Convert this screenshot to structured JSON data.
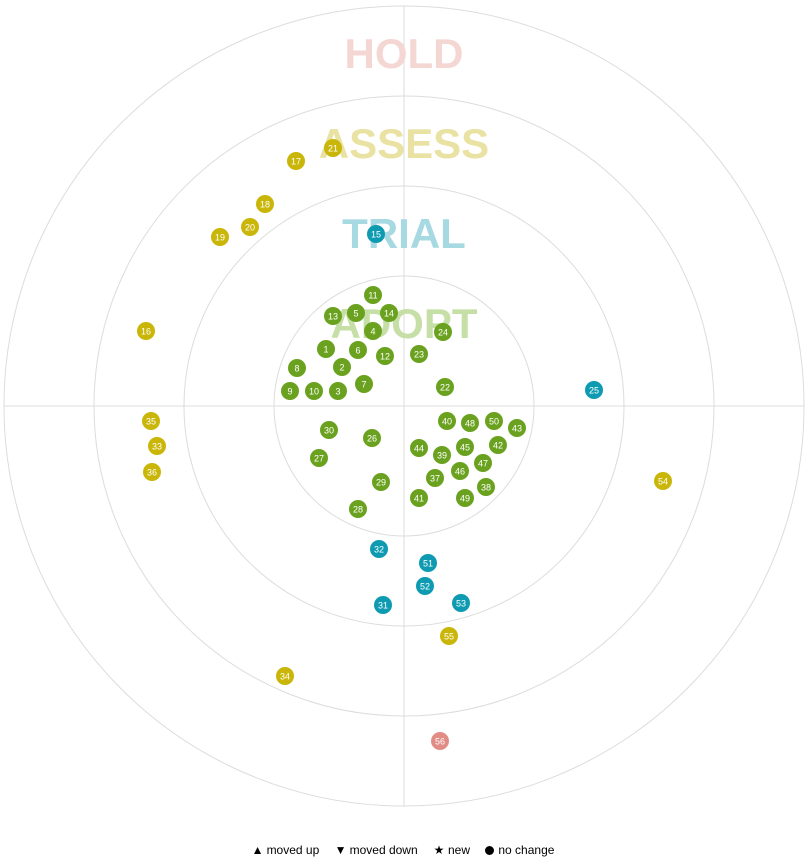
{
  "rings": [
    {
      "name": "ADOPT",
      "color": "#6aa21f",
      "label_color": "#c5dfa6"
    },
    {
      "name": "TRIAL",
      "color": "#0e9bb1",
      "label_color": "#a7d9e2"
    },
    {
      "name": "ASSESS",
      "color": "#c9b609",
      "label_color": "#e9e2a2"
    },
    {
      "name": "HOLD",
      "color": "#e28c86",
      "label_color": "#f4d6d3"
    }
  ],
  "blips": [
    {
      "id": "1",
      "ring": "ADOPT"
    },
    {
      "id": "2",
      "ring": "ADOPT"
    },
    {
      "id": "3",
      "ring": "ADOPT"
    },
    {
      "id": "4",
      "ring": "ADOPT"
    },
    {
      "id": "5",
      "ring": "ADOPT"
    },
    {
      "id": "6",
      "ring": "ADOPT"
    },
    {
      "id": "7",
      "ring": "ADOPT"
    },
    {
      "id": "8",
      "ring": "ADOPT"
    },
    {
      "id": "9",
      "ring": "ADOPT"
    },
    {
      "id": "10",
      "ring": "ADOPT"
    },
    {
      "id": "11",
      "ring": "ADOPT"
    },
    {
      "id": "12",
      "ring": "ADOPT"
    },
    {
      "id": "13",
      "ring": "ADOPT"
    },
    {
      "id": "14",
      "ring": "ADOPT"
    },
    {
      "id": "15",
      "ring": "TRIAL"
    },
    {
      "id": "16",
      "ring": "ASSESS"
    },
    {
      "id": "17",
      "ring": "ASSESS"
    },
    {
      "id": "18",
      "ring": "ASSESS"
    },
    {
      "id": "19",
      "ring": "ASSESS"
    },
    {
      "id": "20",
      "ring": "ASSESS"
    },
    {
      "id": "21",
      "ring": "ASSESS"
    },
    {
      "id": "22",
      "ring": "ADOPT"
    },
    {
      "id": "23",
      "ring": "ADOPT"
    },
    {
      "id": "24",
      "ring": "ADOPT"
    },
    {
      "id": "25",
      "ring": "TRIAL"
    },
    {
      "id": "26",
      "ring": "ADOPT"
    },
    {
      "id": "27",
      "ring": "ADOPT"
    },
    {
      "id": "28",
      "ring": "ADOPT"
    },
    {
      "id": "29",
      "ring": "ADOPT"
    },
    {
      "id": "30",
      "ring": "ADOPT"
    },
    {
      "id": "31",
      "ring": "TRIAL"
    },
    {
      "id": "32",
      "ring": "TRIAL"
    },
    {
      "id": "33",
      "ring": "ASSESS"
    },
    {
      "id": "34",
      "ring": "ASSESS"
    },
    {
      "id": "35",
      "ring": "ASSESS"
    },
    {
      "id": "36",
      "ring": "ASSESS"
    },
    {
      "id": "37",
      "ring": "ADOPT"
    },
    {
      "id": "38",
      "ring": "ADOPT"
    },
    {
      "id": "39",
      "ring": "ADOPT"
    },
    {
      "id": "40",
      "ring": "ADOPT"
    },
    {
      "id": "41",
      "ring": "ADOPT"
    },
    {
      "id": "42",
      "ring": "ADOPT"
    },
    {
      "id": "43",
      "ring": "ADOPT"
    },
    {
      "id": "44",
      "ring": "ADOPT"
    },
    {
      "id": "45",
      "ring": "ADOPT"
    },
    {
      "id": "46",
      "ring": "ADOPT"
    },
    {
      "id": "47",
      "ring": "ADOPT"
    },
    {
      "id": "48",
      "ring": "ADOPT"
    },
    {
      "id": "49",
      "ring": "ADOPT"
    },
    {
      "id": "50",
      "ring": "ADOPT"
    },
    {
      "id": "51",
      "ring": "TRIAL"
    },
    {
      "id": "52",
      "ring": "TRIAL"
    },
    {
      "id": "53",
      "ring": "TRIAL"
    },
    {
      "id": "54",
      "ring": "ASSESS"
    },
    {
      "id": "55",
      "ring": "ASSESS"
    },
    {
      "id": "56",
      "ring": "HOLD"
    }
  ],
  "legend": {
    "moved_up": "moved up",
    "moved_down": "moved down",
    "new": "new",
    "no_change": "no change"
  },
  "legend_symbols": {
    "moved_up": "▲",
    "moved_down": "▼",
    "new": "★"
  }
}
